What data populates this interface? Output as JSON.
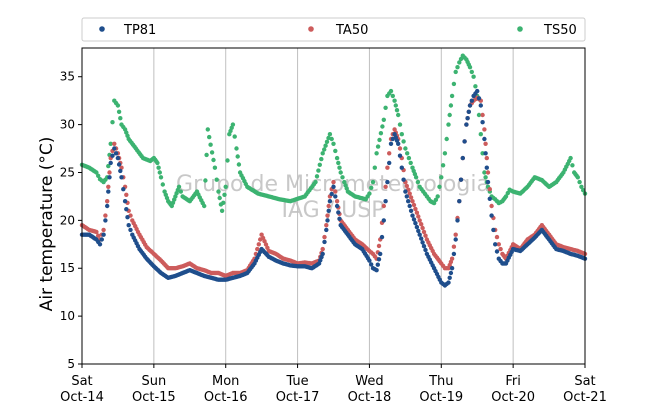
{
  "chart_data": {
    "type": "scatter",
    "ylabel": "Air temperature (°C)",
    "ylim": [
      5,
      38
    ],
    "yticks": [
      5,
      10,
      15,
      20,
      25,
      30,
      35
    ],
    "xlim": [
      0,
      7
    ],
    "xticks": [
      {
        "day": "Sat",
        "date": "Oct-14"
      },
      {
        "day": "Sun",
        "date": "Oct-15"
      },
      {
        "day": "Mon",
        "date": "Oct-16"
      },
      {
        "day": "Tue",
        "date": "Oct-17"
      },
      {
        "day": "Wed",
        "date": "Oct-18"
      },
      {
        "day": "Thu",
        "date": "Oct-19"
      },
      {
        "day": "Fri",
        "date": "Oct-20"
      },
      {
        "day": "Sat",
        "date": "Oct-21"
      }
    ],
    "grid": "vertical",
    "legend_position": "top",
    "watermark": [
      "Grupo de Micrometeorologia",
      "IAG / USP"
    ],
    "series": [
      {
        "name": "TS50",
        "color": "#3cb371",
        "x": [
          0,
          0.1,
          0.2,
          0.25,
          0.3,
          0.35,
          0.4,
          0.45,
          0.5,
          0.55,
          0.6,
          0.65,
          0.75,
          0.85,
          0.95,
          1.0,
          1.05,
          1.1,
          1.15,
          1.2,
          1.25,
          1.3,
          1.35,
          1.4,
          1.5,
          1.6,
          1.7,
          1.75,
          1.85,
          1.9,
          1.95,
          2.0,
          2.05,
          2.1,
          2.15,
          2.2,
          2.3,
          2.45,
          2.6,
          2.75,
          2.9,
          3.1,
          3.25,
          3.35,
          3.45,
          3.5,
          3.55,
          3.6,
          3.65,
          3.7,
          3.8,
          3.95,
          4.0,
          4.05,
          4.1,
          4.2,
          4.25,
          4.3,
          4.35,
          4.4,
          4.45,
          4.5,
          4.55,
          4.6,
          4.65,
          4.7,
          4.75,
          4.8,
          4.85,
          4.9,
          4.95,
          5.0,
          5.05,
          5.1,
          5.15,
          5.2,
          5.25,
          5.3,
          5.35,
          5.4,
          5.45,
          5.5,
          5.55,
          5.6,
          5.65,
          5.7,
          5.75,
          5.8,
          5.85,
          5.9,
          5.95,
          6.0,
          6.1,
          6.2,
          6.3,
          6.4,
          6.5,
          6.6,
          6.7,
          6.8,
          6.85,
          6.9,
          6.95,
          7.0
        ],
        "y": [
          25.8,
          25.5,
          25.0,
          24.3,
          24.0,
          24.5,
          28.0,
          32.5,
          32.0,
          30.0,
          29.5,
          28.5,
          27.5,
          26.5,
          26.2,
          26.5,
          26.0,
          24.5,
          23.0,
          22.0,
          21.5,
          22.5,
          23.5,
          22.5,
          22.0,
          23.0,
          21.5,
          29.5,
          25.5,
          23.0,
          21.0,
          23.5,
          29.0,
          30.0,
          27.5,
          25.0,
          23.5,
          22.8,
          22.5,
          22.2,
          22.0,
          22.5,
          24.0,
          27.0,
          29.0,
          28.0,
          26.5,
          25.0,
          24.0,
          23.0,
          22.5,
          22.2,
          22.8,
          24.0,
          27.0,
          30.5,
          33.0,
          33.5,
          32.5,
          31.0,
          29.0,
          27.5,
          26.5,
          25.5,
          24.5,
          23.5,
          23.0,
          22.5,
          22.0,
          21.8,
          22.5,
          24.5,
          27.0,
          30.0,
          33.0,
          35.5,
          36.5,
          37.2,
          36.8,
          36.0,
          35.0,
          33.0,
          29.0,
          25.0,
          23.5,
          22.5,
          22.2,
          21.8,
          22.0,
          22.5,
          23.2,
          23.0,
          22.8,
          23.5,
          24.5,
          24.2,
          23.5,
          24.0,
          25.0,
          26.5,
          25.0,
          24.5,
          23.5,
          22.8
        ]
      },
      {
        "name": "TA50",
        "color": "#cd5c5c",
        "x": [
          0,
          0.1,
          0.2,
          0.25,
          0.3,
          0.35,
          0.4,
          0.45,
          0.5,
          0.55,
          0.6,
          0.65,
          0.7,
          0.8,
          0.9,
          1.0,
          1.1,
          1.2,
          1.3,
          1.4,
          1.5,
          1.6,
          1.7,
          1.8,
          1.9,
          2.0,
          2.1,
          2.2,
          2.3,
          2.4,
          2.5,
          2.6,
          2.7,
          2.8,
          2.9,
          3.0,
          3.1,
          3.2,
          3.3,
          3.35,
          3.4,
          3.45,
          3.5,
          3.55,
          3.6,
          3.7,
          3.8,
          3.9,
          4.0,
          4.05,
          4.1,
          4.15,
          4.2,
          4.25,
          4.3,
          4.35,
          4.4,
          4.45,
          4.5,
          4.6,
          4.7,
          4.8,
          4.9,
          5.0,
          5.05,
          5.1,
          5.15,
          5.2,
          5.25,
          5.3,
          5.35,
          5.4,
          5.45,
          5.5,
          5.55,
          5.6,
          5.65,
          5.7,
          5.75,
          5.8,
          5.85,
          5.9,
          6.0,
          6.1,
          6.2,
          6.3,
          6.4,
          6.5,
          6.6,
          6.7,
          6.8,
          6.9,
          7.0
        ],
        "y": [
          19.5,
          19.0,
          18.8,
          18.0,
          19.0,
          22.0,
          26.5,
          28.0,
          27.0,
          25.5,
          23.5,
          21.0,
          20.0,
          18.5,
          17.2,
          16.5,
          15.8,
          15.0,
          15.0,
          15.2,
          15.5,
          15.0,
          14.8,
          14.5,
          14.5,
          14.2,
          14.5,
          14.5,
          14.8,
          16.0,
          18.5,
          16.8,
          16.5,
          16.0,
          15.8,
          15.5,
          15.6,
          15.5,
          15.8,
          17.0,
          19.5,
          22.5,
          24.0,
          22.0,
          20.0,
          19.0,
          18.0,
          17.5,
          16.8,
          16.5,
          16.0,
          18.0,
          21.5,
          25.5,
          28.5,
          29.5,
          28.5,
          26.5,
          24.0,
          22.0,
          20.0,
          18.0,
          16.5,
          15.5,
          15.0,
          15.0,
          16.0,
          18.5,
          22.0,
          26.5,
          30.0,
          32.0,
          32.5,
          32.8,
          32.5,
          29.5,
          25.0,
          21.5,
          19.0,
          17.5,
          16.5,
          16.0,
          17.5,
          17.0,
          18.0,
          18.5,
          19.5,
          18.5,
          17.5,
          17.2,
          17.0,
          16.8,
          16.5
        ]
      },
      {
        "name": "TP81",
        "color": "#1f4e8c",
        "x": [
          0,
          0.1,
          0.2,
          0.25,
          0.3,
          0.35,
          0.4,
          0.45,
          0.5,
          0.55,
          0.6,
          0.65,
          0.7,
          0.8,
          0.9,
          1.0,
          1.1,
          1.2,
          1.3,
          1.4,
          1.5,
          1.6,
          1.7,
          1.8,
          1.9,
          2.0,
          2.1,
          2.2,
          2.3,
          2.4,
          2.5,
          2.6,
          2.7,
          2.8,
          2.9,
          3.0,
          3.1,
          3.2,
          3.3,
          3.35,
          3.4,
          3.45,
          3.5,
          3.55,
          3.6,
          3.7,
          3.8,
          3.9,
          4.0,
          4.05,
          4.1,
          4.15,
          4.2,
          4.25,
          4.3,
          4.35,
          4.4,
          4.45,
          4.5,
          4.6,
          4.7,
          4.8,
          4.9,
          5.0,
          5.05,
          5.1,
          5.15,
          5.2,
          5.25,
          5.3,
          5.35,
          5.4,
          5.45,
          5.5,
          5.55,
          5.6,
          5.65,
          5.7,
          5.75,
          5.8,
          5.85,
          5.9,
          6.0,
          6.1,
          6.2,
          6.3,
          6.4,
          6.5,
          6.6,
          6.7,
          6.8,
          6.9,
          7.0
        ],
        "y": [
          18.5,
          18.5,
          18.0,
          17.5,
          18.5,
          21.5,
          26.0,
          27.5,
          26.5,
          24.5,
          22.0,
          19.5,
          18.5,
          17.0,
          16.0,
          15.2,
          14.5,
          14.0,
          14.2,
          14.5,
          14.8,
          14.5,
          14.2,
          14.0,
          13.8,
          13.8,
          14.0,
          14.2,
          14.5,
          15.5,
          17.0,
          16.2,
          15.8,
          15.5,
          15.3,
          15.2,
          15.2,
          15.0,
          15.5,
          16.5,
          19.0,
          22.0,
          23.5,
          21.5,
          19.5,
          18.5,
          17.5,
          17.0,
          15.8,
          15.0,
          14.8,
          16.5,
          20.0,
          24.0,
          28.0,
          29.0,
          28.0,
          25.5,
          23.0,
          20.5,
          18.5,
          16.5,
          15.0,
          13.5,
          13.2,
          13.5,
          15.0,
          18.0,
          22.0,
          26.5,
          30.0,
          32.0,
          33.0,
          33.5,
          32.0,
          28.5,
          24.0,
          20.5,
          17.5,
          16.0,
          15.5,
          15.5,
          17.0,
          16.8,
          17.5,
          18.2,
          19.0,
          18.0,
          17.0,
          16.8,
          16.5,
          16.3,
          16.0
        ]
      }
    ]
  }
}
